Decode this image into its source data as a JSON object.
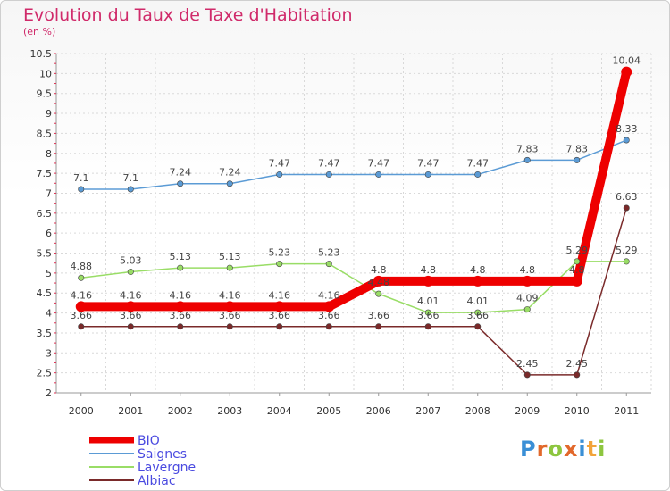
{
  "chart_data": {
    "type": "line",
    "title": "Evolution du Taux de Taxe d'Habitation",
    "subtitle": "(en %)",
    "categories": [
      "2000",
      "2001",
      "2002",
      "2003",
      "2004",
      "2005",
      "2006",
      "2007",
      "2008",
      "2009",
      "2010",
      "2011"
    ],
    "ylim": [
      2,
      10.5
    ],
    "yticks": [
      2,
      2.5,
      3,
      3.5,
      4,
      4.5,
      5,
      5.5,
      6,
      6.5,
      7,
      7.5,
      8,
      8.5,
      9,
      9.5,
      10,
      10.5
    ],
    "series": [
      {
        "name": "BIO",
        "color": "#ee0000",
        "values": [
          4.16,
          4.16,
          4.16,
          4.16,
          4.16,
          4.16,
          4.8,
          4.8,
          4.8,
          4.8,
          4.8,
          10.04
        ],
        "labels": [
          "4.16",
          "4.16",
          "4.16",
          "4.16",
          "4.16",
          "4.16",
          "4.8",
          "4.8",
          "4.8",
          "4.8",
          "4.8",
          "10.04"
        ]
      },
      {
        "name": "Saignes",
        "color": "#5b9bd5",
        "values": [
          7.1,
          7.1,
          7.24,
          7.24,
          7.47,
          7.47,
          7.47,
          7.47,
          7.47,
          7.83,
          7.83,
          8.33
        ],
        "labels": [
          "7.1",
          "7.1",
          "7.24",
          "7.24",
          "7.47",
          "7.47",
          "7.47",
          "7.47",
          "7.47",
          "7.83",
          "7.83",
          "8.33"
        ]
      },
      {
        "name": "Lavergne",
        "color": "#99dd66",
        "values": [
          4.88,
          5.03,
          5.13,
          5.13,
          5.23,
          5.23,
          4.48,
          4.01,
          4.01,
          4.09,
          5.29,
          5.29
        ],
        "labels": [
          "4.88",
          "5.03",
          "5.13",
          "5.13",
          "5.23",
          "5.23",
          "4.48",
          "4.01",
          "4.01",
          "4.09",
          "5.29",
          "5.29"
        ]
      },
      {
        "name": "Albiac",
        "color": "#7a2a2a",
        "values": [
          3.66,
          3.66,
          3.66,
          3.66,
          3.66,
          3.66,
          3.66,
          3.66,
          3.66,
          2.45,
          2.45,
          6.63
        ],
        "labels": [
          "3.66",
          "3.66",
          "3.66",
          "3.66",
          "3.66",
          "3.66",
          "3.66",
          "3.66",
          "3.66",
          "2.45",
          "2.45",
          "6.63"
        ]
      }
    ]
  },
  "brand": {
    "logo_text": "Proxiti",
    "logo_colors": [
      "#3a8fd6",
      "#e2682b",
      "#8dc63f",
      "#e2682b",
      "#3a8fd6",
      "#f2a33a",
      "#8dc63f"
    ]
  }
}
